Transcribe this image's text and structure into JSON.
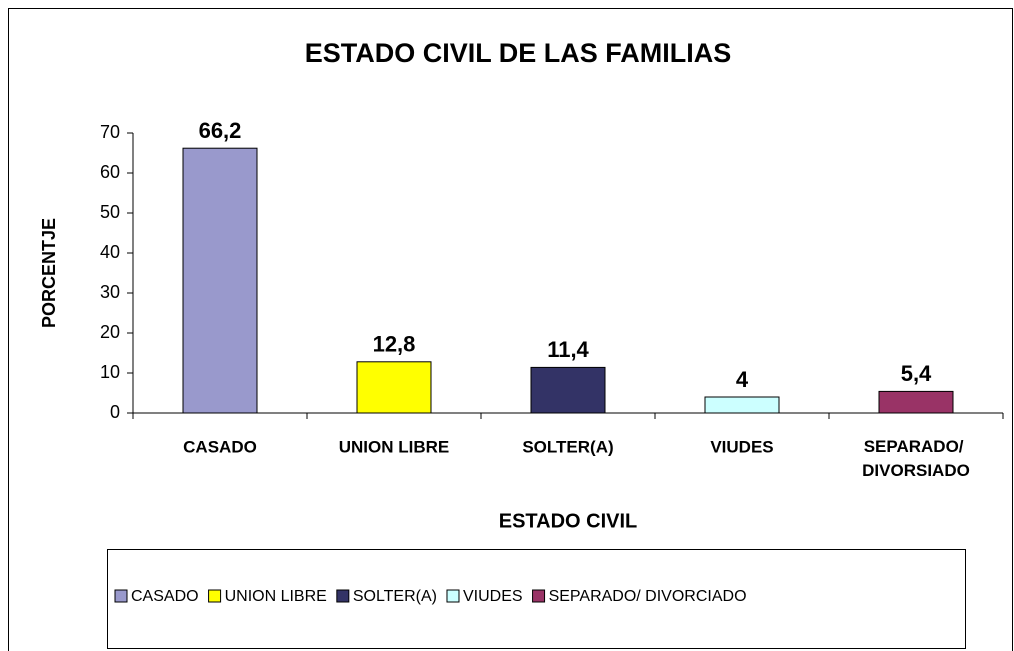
{
  "chart_data": {
    "type": "bar",
    "title": "ESTADO CIVIL DE LAS FAMILIAS",
    "categories": [
      "CASADO",
      "UNION LIBRE",
      "SOLTER(A)",
      "VIUDES",
      "SEPARADO/ DIVORSIADO"
    ],
    "values": [
      66.2,
      12.8,
      11.4,
      4,
      5.4
    ],
    "value_labels": [
      "66,2",
      "12,8",
      "11,4",
      "4",
      "5,4"
    ],
    "colors": [
      "#9999cc",
      "#ffff00",
      "#333366",
      "#ccffff",
      "#993366"
    ],
    "legend": [
      "CASADO",
      "UNION LIBRE",
      "SOLTER(A)",
      "VIUDES",
      "SEPARADO/ DIVORCIADO"
    ],
    "x_label": "ESTADO CIVIL",
    "y_label": "PORCENTJE",
    "ylim": [
      0,
      70
    ],
    "yticks": [
      0,
      10,
      20,
      30,
      40,
      50,
      60,
      70
    ],
    "grid": false
  }
}
